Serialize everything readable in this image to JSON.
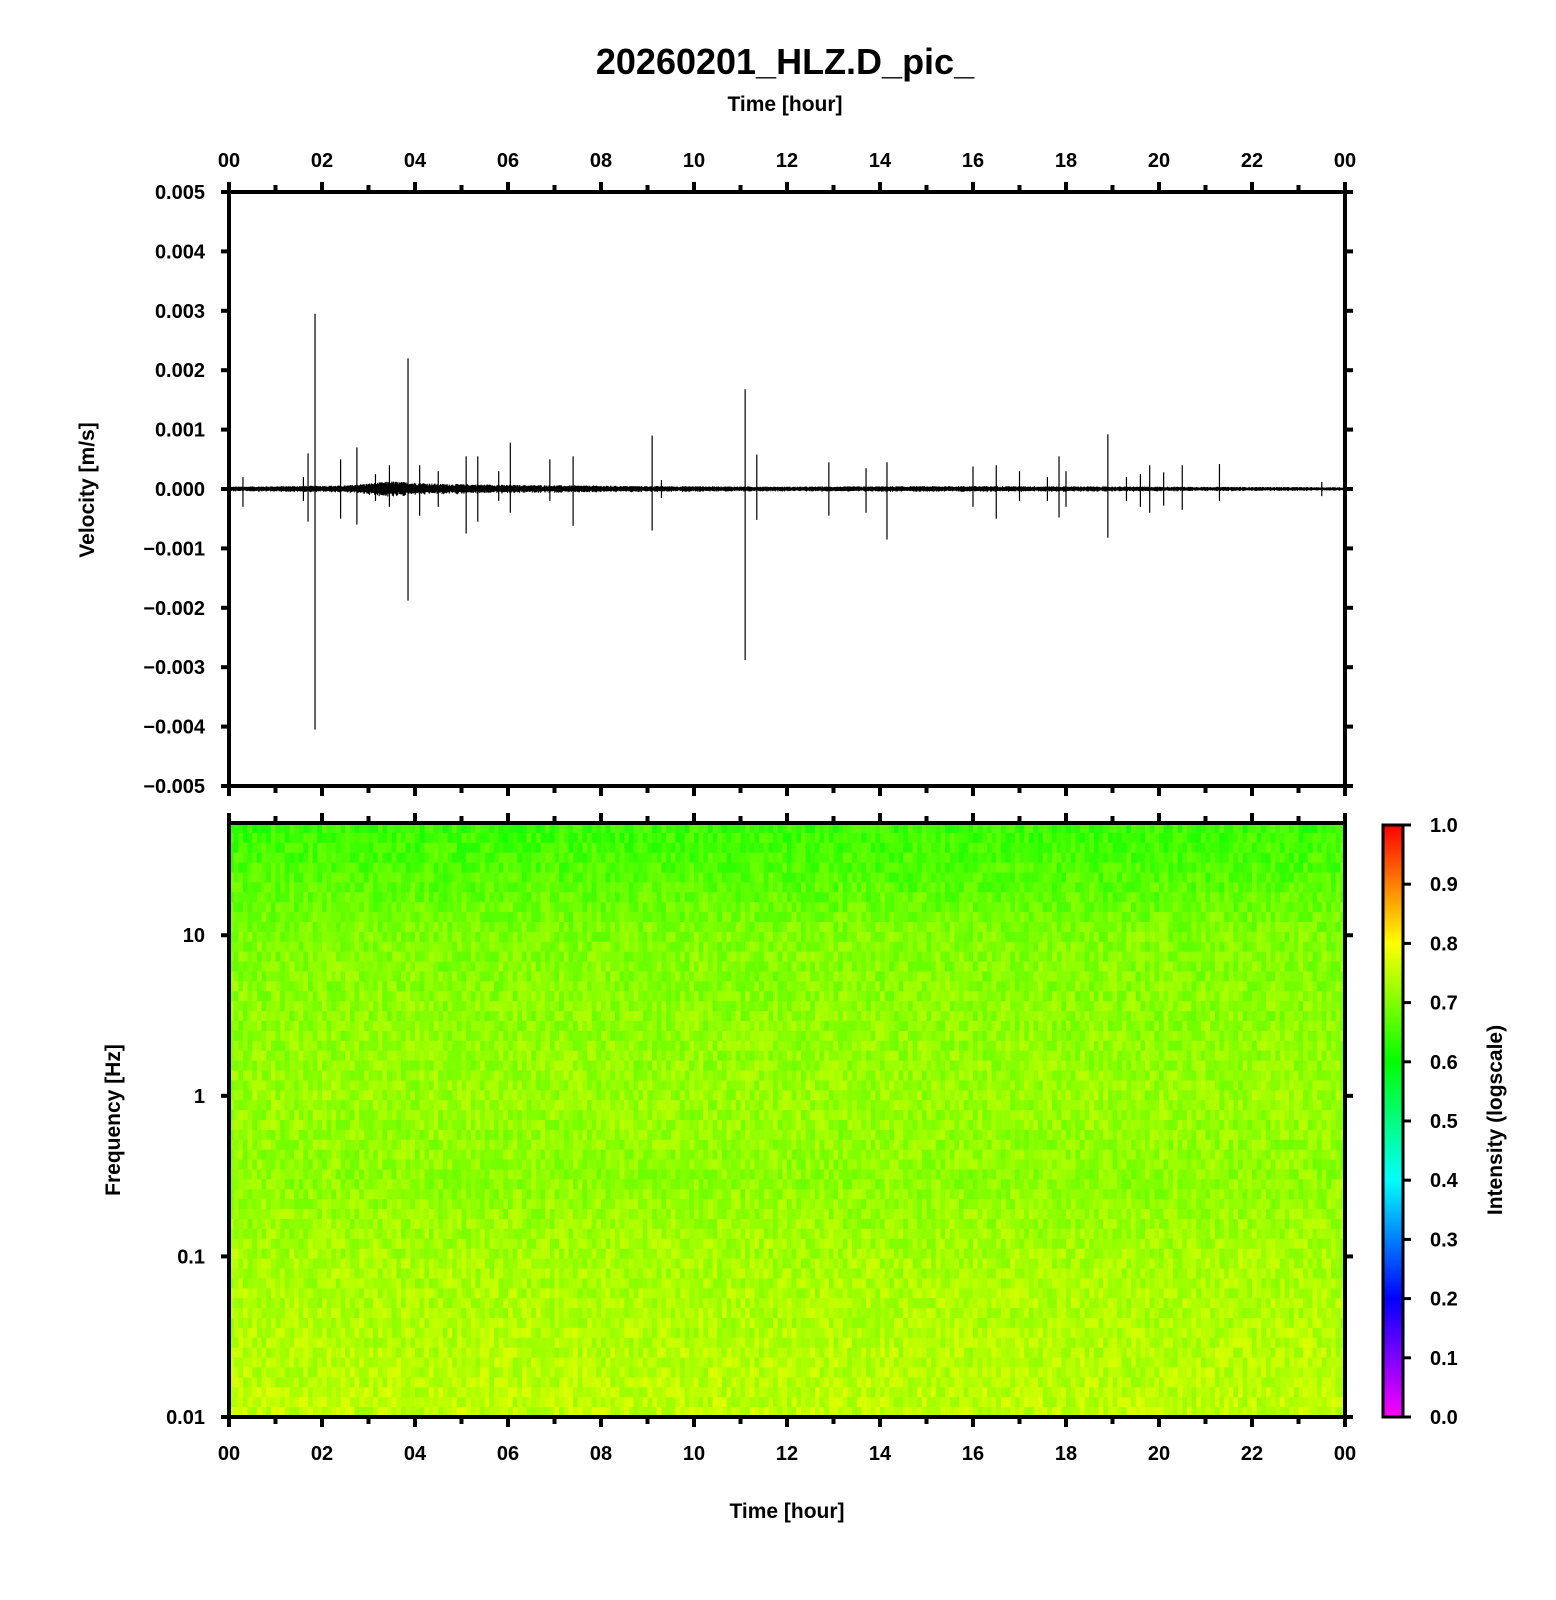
{
  "title": "20260201_HLZ.D_pic_",
  "chart_data": [
    {
      "type": "line",
      "panel": "waveform",
      "xlabel": "Time [hour]",
      "ylabel": "Velocity [m/s]",
      "xlim": [
        0,
        24
      ],
      "ylim": [
        -0.005,
        0.005
      ],
      "x_tick_labels": [
        "00",
        "02",
        "04",
        "06",
        "08",
        "10",
        "12",
        "14",
        "16",
        "18",
        "20",
        "22",
        "00"
      ],
      "y_tick_values": [
        0.005,
        0.004,
        0.003,
        0.002,
        0.001,
        0.0,
        -0.001,
        -0.002,
        -0.003,
        -0.004,
        -0.005
      ],
      "y_tick_labels": [
        "0.005",
        "0.004",
        "0.003",
        "0.002",
        "0.001",
        "0.000",
        "−0.001",
        "−0.002",
        "−0.003",
        "−0.004",
        "−0.005"
      ],
      "line_color": "#000000",
      "background_noise": [
        {
          "x": 0.0,
          "amp": 4e-05
        },
        {
          "x": 2.5,
          "amp": 6e-05
        },
        {
          "x": 3.5,
          "amp": 0.00013
        },
        {
          "x": 4.5,
          "amp": 9e-05
        },
        {
          "x": 6.0,
          "amp": 7e-05
        },
        {
          "x": 9.0,
          "amp": 5e-05
        },
        {
          "x": 12.0,
          "amp": 4e-05
        },
        {
          "x": 16.0,
          "amp": 5e-05
        },
        {
          "x": 20.0,
          "amp": 4e-05
        },
        {
          "x": 24.0,
          "amp": 3e-05
        }
      ],
      "spikes": [
        {
          "x": 0.3,
          "max": 0.0002,
          "min": -0.0003
        },
        {
          "x": 1.6,
          "max": 0.0002,
          "min": -0.0002
        },
        {
          "x": 1.7,
          "max": 0.0006,
          "min": -0.00055
        },
        {
          "x": 1.85,
          "max": 0.00295,
          "min": -0.00405
        },
        {
          "x": 2.4,
          "max": 0.0005,
          "min": -0.0005
        },
        {
          "x": 2.75,
          "max": 0.0007,
          "min": -0.0006
        },
        {
          "x": 3.15,
          "max": 0.00025,
          "min": -0.0002
        },
        {
          "x": 3.45,
          "max": 0.0004,
          "min": -0.0003
        },
        {
          "x": 3.85,
          "max": 0.0022,
          "min": -0.00188
        },
        {
          "x": 4.1,
          "max": 0.0004,
          "min": -0.00045
        },
        {
          "x": 4.5,
          "max": 0.0003,
          "min": -0.0003
        },
        {
          "x": 5.1,
          "max": 0.00055,
          "min": -0.00075
        },
        {
          "x": 5.35,
          "max": 0.00055,
          "min": -0.00055
        },
        {
          "x": 5.8,
          "max": 0.0003,
          "min": -0.0002
        },
        {
          "x": 6.05,
          "max": 0.00078,
          "min": -0.0004
        },
        {
          "x": 6.9,
          "max": 0.0005,
          "min": -0.0002
        },
        {
          "x": 7.4,
          "max": 0.00055,
          "min": -0.00062
        },
        {
          "x": 9.1,
          "max": 0.0009,
          "min": -0.0007
        },
        {
          "x": 9.3,
          "max": 0.00015,
          "min": -0.00015
        },
        {
          "x": 11.1,
          "max": 0.00168,
          "min": -0.00288
        },
        {
          "x": 11.35,
          "max": 0.00058,
          "min": -0.00052
        },
        {
          "x": 12.9,
          "max": 0.00045,
          "min": -0.00045
        },
        {
          "x": 13.7,
          "max": 0.00035,
          "min": -0.0004
        },
        {
          "x": 14.15,
          "max": 0.00045,
          "min": -0.00085
        },
        {
          "x": 16.0,
          "max": 0.00038,
          "min": -0.0003
        },
        {
          "x": 16.5,
          "max": 0.0004,
          "min": -0.0005
        },
        {
          "x": 17.0,
          "max": 0.0003,
          "min": -0.0002
        },
        {
          "x": 17.6,
          "max": 0.0002,
          "min": -0.0002
        },
        {
          "x": 17.85,
          "max": 0.00055,
          "min": -0.00048
        },
        {
          "x": 18.0,
          "max": 0.0003,
          "min": -0.0003
        },
        {
          "x": 18.9,
          "max": 0.00092,
          "min": -0.00082
        },
        {
          "x": 19.3,
          "max": 0.0002,
          "min": -0.0002
        },
        {
          "x": 19.6,
          "max": 0.00025,
          "min": -0.0003
        },
        {
          "x": 19.8,
          "max": 0.0004,
          "min": -0.0004
        },
        {
          "x": 20.1,
          "max": 0.00028,
          "min": -0.00028
        },
        {
          "x": 20.5,
          "max": 0.0004,
          "min": -0.00035
        },
        {
          "x": 21.3,
          "max": 0.00042,
          "min": -0.0002
        },
        {
          "x": 23.5,
          "max": 0.00012,
          "min": -0.00012
        }
      ]
    },
    {
      "type": "heatmap",
      "panel": "spectrogram",
      "xlabel": "Time [hour]",
      "ylabel": "Frequency [Hz]",
      "xlim": [
        0,
        24
      ],
      "ylim": [
        0.01,
        50
      ],
      "y_scale": "log",
      "x_tick_labels": [
        "00",
        "02",
        "04",
        "06",
        "08",
        "10",
        "12",
        "14",
        "16",
        "18",
        "20",
        "22",
        "00"
      ],
      "y_tick_values": [
        10,
        1,
        0.1,
        0.01
      ],
      "y_tick_labels": [
        "10",
        "1",
        "0.1",
        "0.01"
      ],
      "intensity_by_frequency": [
        {
          "freq": 50,
          "intensity": 0.64
        },
        {
          "freq": 20,
          "intensity": 0.67
        },
        {
          "freq": 10,
          "intensity": 0.7
        },
        {
          "freq": 3,
          "intensity": 0.71
        },
        {
          "freq": 1,
          "intensity": 0.72
        },
        {
          "freq": 0.3,
          "intensity": 0.71
        },
        {
          "freq": 0.1,
          "intensity": 0.73
        },
        {
          "freq": 0.03,
          "intensity": 0.74
        },
        {
          "freq": 0.01,
          "intensity": 0.75
        }
      ],
      "intensity_variation": 0.03,
      "colorbar": {
        "label": "Intensity (logscale)",
        "range": [
          0.0,
          1.0
        ],
        "tick_labels": [
          "1.0",
          "0.9",
          "0.8",
          "0.7",
          "0.6",
          "0.5",
          "0.4",
          "0.3",
          "0.2",
          "0.1",
          "0.0"
        ],
        "colormap": [
          "#ff00ff",
          "#0000ff",
          "#00ffff",
          "#00ff00",
          "#ffff00",
          "#ff0000"
        ]
      }
    }
  ]
}
